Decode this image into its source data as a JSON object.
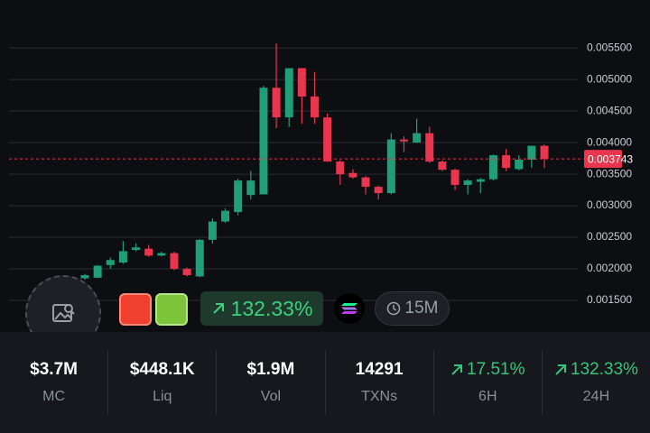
{
  "chart_data": {
    "type": "candlestick",
    "ylim": [
      0.001,
      0.00626
    ],
    "yticks": [
      {
        "value": 0.0015,
        "label": "0.001500"
      },
      {
        "value": 0.002,
        "label": "0.002000"
      },
      {
        "value": 0.0025,
        "label": "0.002500"
      },
      {
        "value": 0.003,
        "label": "0.003000"
      },
      {
        "value": 0.0035,
        "label": "0.003500"
      },
      {
        "value": 0.004,
        "label": "0.004000"
      },
      {
        "value": 0.0045,
        "label": "0.004500"
      },
      {
        "value": 0.005,
        "label": "0.005000"
      },
      {
        "value": 0.0055,
        "label": "0.005500"
      }
    ],
    "grid": true,
    "up_color": "#1f9e78",
    "down_color": "#e8364f",
    "last_price": {
      "value": 0.003743,
      "label": "0.003743"
    },
    "candles": [
      {
        "open": 0.00185,
        "high": 0.00192,
        "low": 0.00183,
        "close": 0.0019
      },
      {
        "open": 0.00186,
        "high": 0.00206,
        "low": 0.00185,
        "close": 0.00205
      },
      {
        "open": 0.00206,
        "high": 0.00218,
        "low": 0.002,
        "close": 0.00214
      },
      {
        "open": 0.0021,
        "high": 0.00244,
        "low": 0.00208,
        "close": 0.00228
      },
      {
        "open": 0.0023,
        "high": 0.0024,
        "low": 0.00228,
        "close": 0.00234
      },
      {
        "open": 0.00232,
        "high": 0.00238,
        "low": 0.00219,
        "close": 0.00221
      },
      {
        "open": 0.00221,
        "high": 0.00227,
        "low": 0.0022,
        "close": 0.00225
      },
      {
        "open": 0.00225,
        "high": 0.00227,
        "low": 0.00198,
        "close": 0.002
      },
      {
        "open": 0.002,
        "high": 0.00202,
        "low": 0.00188,
        "close": 0.0019
      },
      {
        "open": 0.00188,
        "high": 0.00247,
        "low": 0.00187,
        "close": 0.00246
      },
      {
        "open": 0.00246,
        "high": 0.0028,
        "low": 0.0024,
        "close": 0.00275
      },
      {
        "open": 0.00275,
        "high": 0.00296,
        "low": 0.00273,
        "close": 0.00292
      },
      {
        "open": 0.0029,
        "high": 0.00343,
        "low": 0.00285,
        "close": 0.0034
      },
      {
        "open": 0.00317,
        "high": 0.00355,
        "low": 0.0031,
        "close": 0.0034
      },
      {
        "open": 0.00318,
        "high": 0.0049,
        "low": 0.00318,
        "close": 0.00487
      },
      {
        "open": 0.00487,
        "high": 0.00557,
        "low": 0.00423,
        "close": 0.0044
      },
      {
        "open": 0.0044,
        "high": 0.00518,
        "low": 0.00425,
        "close": 0.00518
      },
      {
        "open": 0.00518,
        "high": 0.00518,
        "low": 0.0043,
        "close": 0.00473
      },
      {
        "open": 0.00473,
        "high": 0.00512,
        "low": 0.0043,
        "close": 0.0044
      },
      {
        "open": 0.0044,
        "high": 0.00446,
        "low": 0.0037,
        "close": 0.0037
      },
      {
        "open": 0.0037,
        "high": 0.00372,
        "low": 0.00333,
        "close": 0.0035
      },
      {
        "open": 0.00352,
        "high": 0.00358,
        "low": 0.00343,
        "close": 0.00345
      },
      {
        "open": 0.00345,
        "high": 0.00347,
        "low": 0.00318,
        "close": 0.0033
      },
      {
        "open": 0.0033,
        "high": 0.00332,
        "low": 0.0031,
        "close": 0.0032
      },
      {
        "open": 0.0032,
        "high": 0.00415,
        "low": 0.00318,
        "close": 0.00405
      },
      {
        "open": 0.00405,
        "high": 0.0041,
        "low": 0.00385,
        "close": 0.00402
      },
      {
        "open": 0.004,
        "high": 0.00438,
        "low": 0.004,
        "close": 0.00415
      },
      {
        "open": 0.00415,
        "high": 0.00425,
        "low": 0.00368,
        "close": 0.0037
      },
      {
        "open": 0.0037,
        "high": 0.00372,
        "low": 0.00355,
        "close": 0.00357
      },
      {
        "open": 0.00357,
        "high": 0.00359,
        "low": 0.00325,
        "close": 0.00333
      },
      {
        "open": 0.00333,
        "high": 0.00342,
        "low": 0.00318,
        "close": 0.0034
      },
      {
        "open": 0.00338,
        "high": 0.00344,
        "low": 0.0032,
        "close": 0.00342
      },
      {
        "open": 0.00342,
        "high": 0.00381,
        "low": 0.0034,
        "close": 0.0038
      },
      {
        "open": 0.0038,
        "high": 0.0039,
        "low": 0.00355,
        "close": 0.0036
      },
      {
        "open": 0.00358,
        "high": 0.0038,
        "low": 0.00356,
        "close": 0.00373
      },
      {
        "open": 0.00373,
        "high": 0.00395,
        "low": 0.0036,
        "close": 0.00395
      },
      {
        "open": 0.00395,
        "high": 0.00397,
        "low": 0.0036,
        "close": 0.003743
      }
    ]
  },
  "overlay": {
    "change": "132.33%",
    "interval": "15M"
  },
  "stats": [
    {
      "value": "$3.7M",
      "label": "MC"
    },
    {
      "value": "$448.1K",
      "label": "Liq"
    },
    {
      "value": "$1.9M",
      "label": "Vol"
    },
    {
      "value": "14291",
      "label": "TXNs"
    },
    {
      "value": "17.51%",
      "label": "6H"
    },
    {
      "value": "132.33%",
      "label": "24H"
    }
  ]
}
